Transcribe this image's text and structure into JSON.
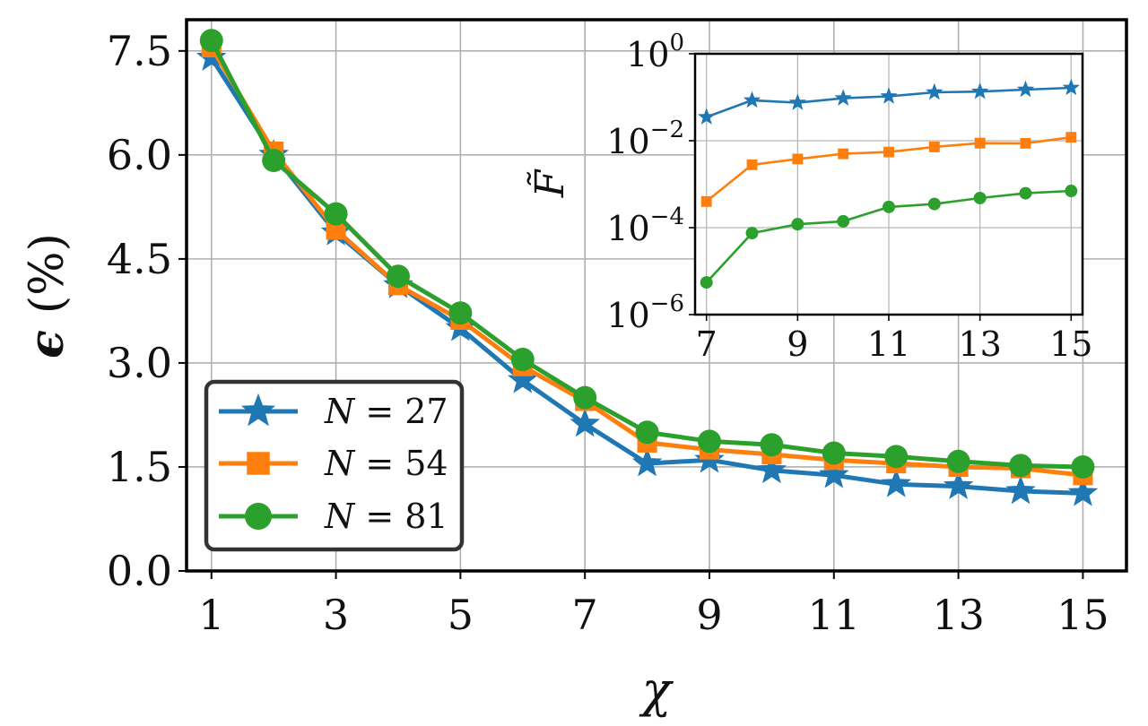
{
  "chart_data": [
    {
      "type": "line",
      "role": "main",
      "xlabel": "χ",
      "ylabel_symbol": "ϵ",
      "ylabel_unit": "(%)",
      "xlim": [
        0.6,
        15.7
      ],
      "ylim": [
        0,
        7.95
      ],
      "xticks": [
        1,
        3,
        5,
        7,
        9,
        11,
        13,
        15
      ],
      "yticks": [
        0.0,
        1.5,
        3.0,
        4.5,
        6.0,
        7.5
      ],
      "ytick_labels": [
        "0.0",
        "1.5",
        "3.0",
        "4.5",
        "6.0",
        "7.5"
      ],
      "grid": true,
      "legend_position": "lower-left",
      "x": [
        1,
        2,
        3,
        4,
        5,
        6,
        7,
        8,
        9,
        10,
        11,
        12,
        13,
        14,
        15
      ],
      "series": [
        {
          "name": "N = 27",
          "label_var": "N",
          "label_val": "27",
          "marker": "star",
          "color": "#1f77b4",
          "values": [
            7.4,
            6.0,
            4.88,
            4.12,
            3.5,
            2.75,
            2.12,
            1.55,
            1.6,
            1.45,
            1.38,
            1.25,
            1.22,
            1.15,
            1.12
          ]
        },
        {
          "name": "N = 54",
          "label_var": "N",
          "label_val": "54",
          "marker": "square",
          "color": "#ff7f0e",
          "values": [
            7.55,
            6.05,
            4.92,
            4.12,
            3.62,
            2.95,
            2.45,
            1.85,
            1.75,
            1.68,
            1.6,
            1.55,
            1.5,
            1.48,
            1.38
          ]
        },
        {
          "name": "N = 81",
          "label_var": "N",
          "label_val": "81",
          "marker": "circle",
          "color": "#2ca02c",
          "values": [
            7.65,
            5.92,
            5.15,
            4.25,
            3.72,
            3.05,
            2.5,
            2.0,
            1.87,
            1.82,
            1.7,
            1.65,
            1.58,
            1.52,
            1.5
          ]
        }
      ]
    },
    {
      "type": "line",
      "role": "inset",
      "ylabel": "F̃",
      "yscale": "log",
      "xlim": [
        6.75,
        15.25
      ],
      "ylim_exp": [
        -6,
        0
      ],
      "xticks": [
        7,
        9,
        11,
        13,
        15
      ],
      "yticks_exp": [
        0,
        -2,
        -4,
        -6
      ],
      "ytick_base": "10",
      "grid": true,
      "x": [
        7,
        8,
        9,
        10,
        11,
        12,
        13,
        14,
        15
      ],
      "series": [
        {
          "marker": "star",
          "color": "#1f77b4",
          "values": [
            0.035,
            0.085,
            0.075,
            0.095,
            0.105,
            0.13,
            0.135,
            0.15,
            0.165
          ]
        },
        {
          "marker": "square",
          "color": "#ff7f0e",
          "values": [
            0.0004,
            0.0028,
            0.0038,
            0.005,
            0.0055,
            0.0072,
            0.0088,
            0.0087,
            0.012
          ]
        },
        {
          "marker": "circle",
          "color": "#2ca02c",
          "values": [
            5.5e-06,
            7.5e-05,
            0.00012,
            0.00014,
            0.0003,
            0.00035,
            0.00048,
            0.00062,
            0.0007
          ]
        }
      ]
    }
  ]
}
